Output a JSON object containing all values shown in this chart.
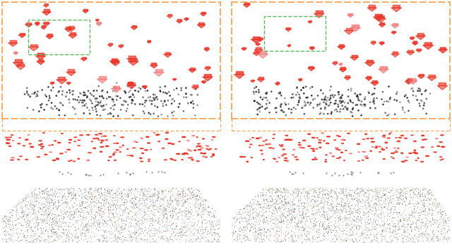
{
  "background": "#ffffff",
  "orange_border": "#F5A04B",
  "green_rect": "#5CB85C",
  "fig_width": 6.4,
  "fig_height": 3.54,
  "dpi": 100,
  "camera_color_main": "#E8382A",
  "camera_color_light": "#F08080"
}
